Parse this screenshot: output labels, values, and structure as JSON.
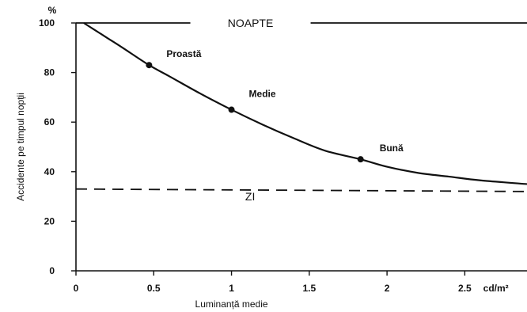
{
  "chart_data": {
    "type": "line",
    "title": "",
    "xlabel": "Luminanță medie",
    "ylabel": "Accidente pe timpul nopții",
    "y_unit": "%",
    "x_unit": "cd/m²",
    "xlim": [
      0,
      2.9
    ],
    "ylim": [
      0,
      100
    ],
    "x_ticks": [
      "0",
      "0.5",
      "1",
      "1.5",
      "2",
      "2.5"
    ],
    "y_ticks": [
      "0",
      "20",
      "40",
      "60",
      "80",
      "100"
    ],
    "grid": false,
    "legend": "none",
    "series": [
      {
        "name": "",
        "style": "solid",
        "x": [
          0.05,
          0.2,
          0.3,
          0.47,
          0.6,
          0.8,
          1.0,
          1.2,
          1.4,
          1.6,
          1.83,
          2.0,
          2.2,
          2.4,
          2.6,
          2.9
        ],
        "y": [
          100,
          94,
          90,
          83,
          78.5,
          71.5,
          65,
          59,
          53.5,
          48.5,
          45,
          42,
          39.5,
          38,
          36.5,
          35
        ]
      },
      {
        "name": "",
        "style": "dashed",
        "x": [
          0,
          2.9
        ],
        "y": [
          33,
          32
        ]
      }
    ],
    "points": [
      {
        "label": "Proastă",
        "x": 0.47,
        "y": 83
      },
      {
        "label": "Medie",
        "x": 1.0,
        "y": 65
      },
      {
        "label": "Bună",
        "x": 1.83,
        "y": 45
      }
    ],
    "annotations": [
      {
        "label": "NOAPTE",
        "x": 1.0,
        "y": 100
      },
      {
        "label": "ZI",
        "x": 1.12,
        "y": 30
      }
    ]
  }
}
